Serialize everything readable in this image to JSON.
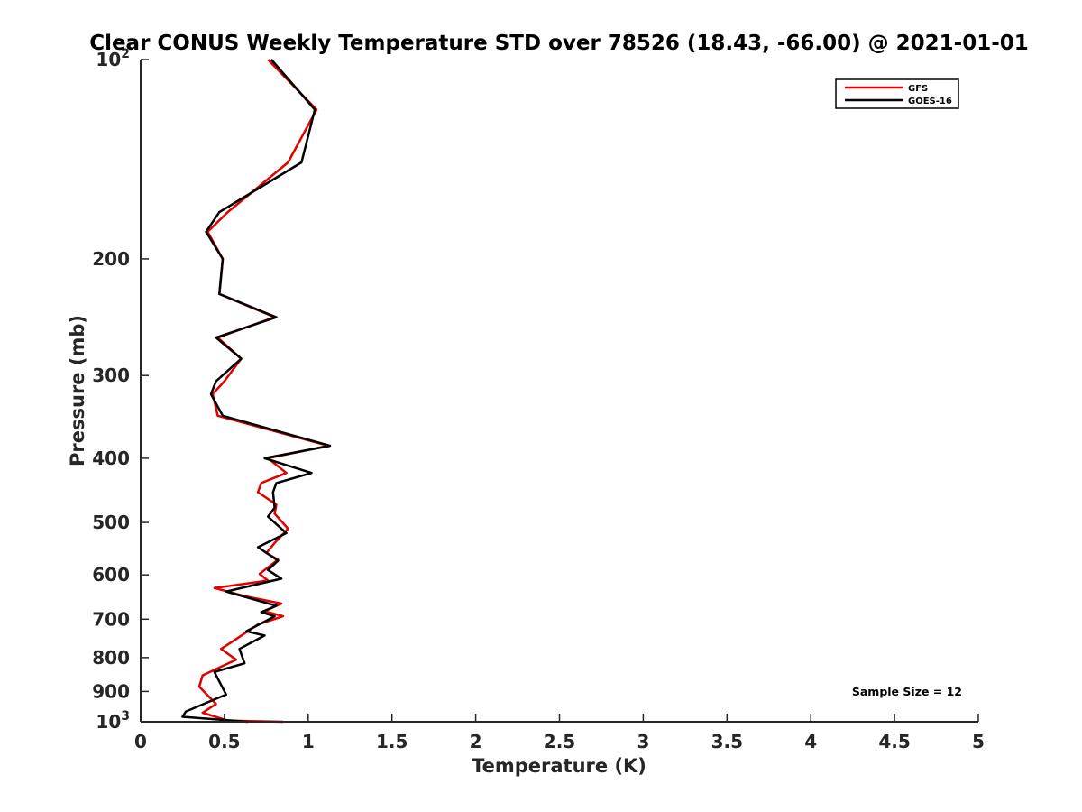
{
  "chart_data": {
    "type": "line",
    "title": "Clear CONUS Weekly Temperature STD over 78526 (18.43, -66.00) @ 2021-01-01",
    "xlabel": "Temperature (K)",
    "ylabel": "Pressure (mb)",
    "xlim": [
      0,
      5
    ],
    "ylim": [
      100,
      1000
    ],
    "yscale": "log",
    "y_reversed": true,
    "xticks": [
      0,
      0.5,
      1,
      1.5,
      2,
      2.5,
      3,
      3.5,
      4,
      4.5,
      5
    ],
    "xtick_labels": [
      "0",
      "0.5",
      "1",
      "1.5",
      "2",
      "2.5",
      "3",
      "3.5",
      "4",
      "4.5",
      "5"
    ],
    "yticks": [
      100,
      200,
      300,
      400,
      500,
      600,
      700,
      800,
      900,
      1000
    ],
    "ytick_labels": [
      {
        "base": "10",
        "exp": "2"
      },
      {
        "base": "200",
        "exp": ""
      },
      {
        "base": "300",
        "exp": ""
      },
      {
        "base": "400",
        "exp": ""
      },
      {
        "base": "500",
        "exp": ""
      },
      {
        "base": "600",
        "exp": ""
      },
      {
        "base": "700",
        "exp": ""
      },
      {
        "base": "800",
        "exp": ""
      },
      {
        "base": "900",
        "exp": ""
      },
      {
        "base": "10",
        "exp": "3"
      }
    ],
    "grid": false,
    "legend_position": "top-right",
    "annotation": "Sample Size = 12",
    "series": [
      {
        "name": "GFS",
        "color": "#e00000",
        "points": [
          [
            0.76,
            100
          ],
          [
            1.05,
            119
          ],
          [
            0.88,
            143
          ],
          [
            0.52,
            170
          ],
          [
            0.4,
            182
          ],
          [
            0.49,
            200
          ],
          [
            0.47,
            226
          ],
          [
            0.8,
            245
          ],
          [
            0.46,
            263
          ],
          [
            0.6,
            283
          ],
          [
            0.5,
            306
          ],
          [
            0.43,
            320
          ],
          [
            0.46,
            345
          ],
          [
            1.12,
            383
          ],
          [
            0.76,
            400
          ],
          [
            0.87,
            421
          ],
          [
            0.72,
            436
          ],
          [
            0.7,
            450
          ],
          [
            0.81,
            470
          ],
          [
            0.8,
            485
          ],
          [
            0.88,
            511
          ],
          [
            0.8,
            537
          ],
          [
            0.75,
            556
          ],
          [
            0.82,
            569
          ],
          [
            0.71,
            598
          ],
          [
            0.76,
            612
          ],
          [
            0.44,
            628
          ],
          [
            0.62,
            646
          ],
          [
            0.84,
            663
          ],
          [
            0.74,
            681
          ],
          [
            0.85,
            693
          ],
          [
            0.7,
            713
          ],
          [
            0.55,
            756
          ],
          [
            0.48,
            776
          ],
          [
            0.57,
            806
          ],
          [
            0.37,
            851
          ],
          [
            0.35,
            885
          ],
          [
            0.45,
            940
          ],
          [
            0.37,
            969
          ],
          [
            0.52,
            996
          ],
          [
            0.85,
            1000
          ]
        ]
      },
      {
        "name": "GOES-16",
        "color": "#000000",
        "points": [
          [
            0.78,
            100
          ],
          [
            1.04,
            119
          ],
          [
            0.96,
            143
          ],
          [
            0.47,
            170
          ],
          [
            0.39,
            182
          ],
          [
            0.49,
            200
          ],
          [
            0.47,
            226
          ],
          [
            0.81,
            245
          ],
          [
            0.45,
            263
          ],
          [
            0.6,
            283
          ],
          [
            0.45,
            306
          ],
          [
            0.42,
            320
          ],
          [
            0.49,
            345
          ],
          [
            1.13,
            383
          ],
          [
            0.74,
            400
          ],
          [
            1.02,
            421
          ],
          [
            0.81,
            436
          ],
          [
            0.79,
            450
          ],
          [
            0.8,
            475
          ],
          [
            0.76,
            490
          ],
          [
            0.87,
            519
          ],
          [
            0.7,
            545
          ],
          [
            0.82,
            571
          ],
          [
            0.76,
            590
          ],
          [
            0.84,
            608
          ],
          [
            0.51,
            636
          ],
          [
            0.81,
            668
          ],
          [
            0.72,
            683
          ],
          [
            0.8,
            693
          ],
          [
            0.63,
            730
          ],
          [
            0.74,
            741
          ],
          [
            0.59,
            776
          ],
          [
            0.62,
            816
          ],
          [
            0.44,
            841
          ],
          [
            0.51,
            910
          ],
          [
            0.45,
            923
          ],
          [
            0.27,
            965
          ],
          [
            0.25,
            983
          ],
          [
            0.64,
            1000
          ]
        ]
      }
    ]
  }
}
